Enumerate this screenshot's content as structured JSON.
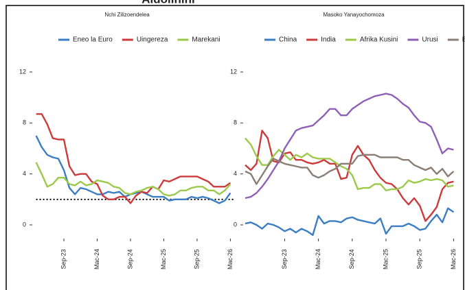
{
  "page_title": "Aidolinini",
  "chart_data": [
    {
      "type": "line",
      "title": "Nchi Zilizoendelea",
      "categories": [
        null,
        null,
        null,
        null,
        null,
        "Sep-23",
        null,
        null,
        null,
        null,
        null,
        "Mac-24",
        null,
        null,
        null,
        null,
        null,
        "Sep-24",
        null,
        null,
        null,
        null,
        null,
        "Mac-25",
        null,
        null,
        null,
        null,
        null,
        "Sep-25",
        null,
        null,
        null,
        null,
        null,
        "Mac-26"
      ],
      "ylim": [
        -1.2,
        13
      ],
      "yticks": [
        0,
        4,
        8,
        12
      ],
      "hline": 2,
      "series": [
        {
          "name": "Eneo la Euro",
          "color": "#3b7dc4",
          "values": [
            7.0,
            6.1,
            5.5,
            5.3,
            5.2,
            4.3,
            2.9,
            2.4,
            2.9,
            2.8,
            2.6,
            2.4,
            2.4,
            2.6,
            2.5,
            2.6,
            2.2,
            2.4,
            2.5,
            2.6,
            2.4,
            2.2,
            2.2,
            2.2,
            1.9,
            2.0,
            2.0,
            2.0,
            2.2,
            2.1,
            2.2,
            2.1,
            1.9,
            1.7,
            1.9,
            2.5
          ]
        },
        {
          "name": "Uingereza",
          "color": "#cc3a3a",
          "values": [
            8.7,
            8.7,
            7.9,
            6.8,
            6.7,
            6.7,
            4.6,
            3.9,
            4.0,
            4.0,
            3.4,
            3.2,
            2.3,
            2.0,
            2.0,
            2.2,
            2.2,
            1.7,
            2.3,
            2.6,
            2.5,
            3.0,
            2.8,
            3.5,
            3.4,
            3.6,
            3.8,
            3.8,
            3.8,
            3.8,
            3.6,
            3.4,
            3.0,
            3.0,
            3.0,
            3.3
          ]
        },
        {
          "name": "Marekani",
          "color": "#9bc94a",
          "values": [
            4.9,
            4.0,
            3.0,
            3.2,
            3.7,
            3.7,
            3.2,
            3.1,
            3.4,
            3.1,
            3.2,
            3.5,
            3.4,
            3.3,
            3.0,
            2.9,
            2.5,
            2.4,
            2.6,
            2.7,
            2.9,
            3.0,
            2.8,
            2.4,
            2.3,
            2.4,
            2.7,
            2.7,
            2.9,
            3.0,
            3.0,
            2.7,
            2.7,
            2.4,
            2.7,
            3.2
          ]
        }
      ]
    },
    {
      "type": "line",
      "title": "Masoko Yanayochomoza",
      "categories": [
        null,
        null,
        null,
        null,
        null,
        null,
        null,
        "Sep-23",
        null,
        null,
        null,
        null,
        null,
        "Mac-24",
        null,
        null,
        null,
        null,
        null,
        "Sep-24",
        null,
        null,
        null,
        null,
        null,
        "Mac-25",
        null,
        null,
        null,
        null,
        null,
        "Sep-25",
        null,
        null,
        null,
        null,
        null,
        "Mac-26"
      ],
      "ylim": [
        -1.2,
        13
      ],
      "yticks": [
        0,
        4,
        8,
        12
      ],
      "series": [
        {
          "name": "China",
          "color": "#3b7dc4",
          "values": [
            0.1,
            0.2,
            0.0,
            -0.3,
            0.1,
            0.0,
            -0.2,
            -0.5,
            -0.3,
            -0.6,
            -0.3,
            -0.5,
            -0.8,
            0.7,
            0.1,
            0.3,
            0.3,
            0.2,
            0.5,
            0.6,
            0.4,
            0.3,
            0.2,
            0.1,
            0.5,
            -0.7,
            -0.1,
            -0.1,
            -0.1,
            0.1,
            -0.1,
            -0.4,
            -0.3,
            0.3,
            0.8,
            0.2,
            1.3,
            1.0
          ]
        },
        {
          "name": "India",
          "color": "#cc3a3a",
          "values": [
            4.7,
            4.3,
            4.8,
            7.4,
            6.8,
            5.0,
            4.9,
            5.6,
            5.7,
            5.1,
            5.1,
            4.9,
            4.8,
            4.9,
            5.1,
            4.8,
            4.8,
            3.6,
            3.7,
            5.5,
            6.2,
            5.5,
            5.1,
            4.3,
            3.7,
            3.3,
            3.2,
            2.8,
            2.1,
            1.6,
            2.1,
            1.5,
            0.3,
            0.8,
            1.4,
            2.8,
            3.3,
            3.4
          ]
        },
        {
          "name": "Afrika Kusini",
          "color": "#9bc94a",
          "values": [
            6.8,
            6.3,
            5.4,
            4.7,
            4.7,
            5.4,
            5.9,
            5.5,
            5.1,
            5.5,
            5.3,
            5.6,
            5.3,
            5.2,
            5.2,
            5.2,
            4.9,
            4.6,
            4.4,
            3.9,
            2.8,
            2.9,
            2.9,
            3.2,
            3.2,
            2.7,
            2.8,
            2.8,
            3.0,
            3.5,
            3.3,
            3.4,
            3.6,
            3.5,
            3.6,
            3.5,
            3.0,
            3.1
          ]
        },
        {
          "name": "Urusi",
          "color": "#8e5fb6",
          "values": [
            2.1,
            2.2,
            2.5,
            3.0,
            3.6,
            4.3,
            5.0,
            6.0,
            6.7,
            7.4,
            7.6,
            7.7,
            7.8,
            8.2,
            8.6,
            9.1,
            9.1,
            8.6,
            8.6,
            9.1,
            9.4,
            9.7,
            9.9,
            10.1,
            10.2,
            10.3,
            10.2,
            9.9,
            9.5,
            9.2,
            8.6,
            8.1,
            8.0,
            7.7,
            6.7,
            5.6,
            6.0,
            5.9
          ]
        },
        {
          "name": "Brazil",
          "color": "#8a7e72",
          "values": [
            4.2,
            4.0,
            3.2,
            3.9,
            4.6,
            5.2,
            5.0,
            4.8,
            4.7,
            4.6,
            4.5,
            4.5,
            3.9,
            3.7,
            3.9,
            4.2,
            4.4,
            4.8,
            4.8,
            4.8,
            5.4,
            5.5,
            5.5,
            5.5,
            5.3,
            5.3,
            5.3,
            5.3,
            5.1,
            5.1,
            4.7,
            4.5,
            4.3,
            4.5,
            4.0,
            4.4,
            3.8,
            4.2
          ]
        }
      ]
    }
  ]
}
